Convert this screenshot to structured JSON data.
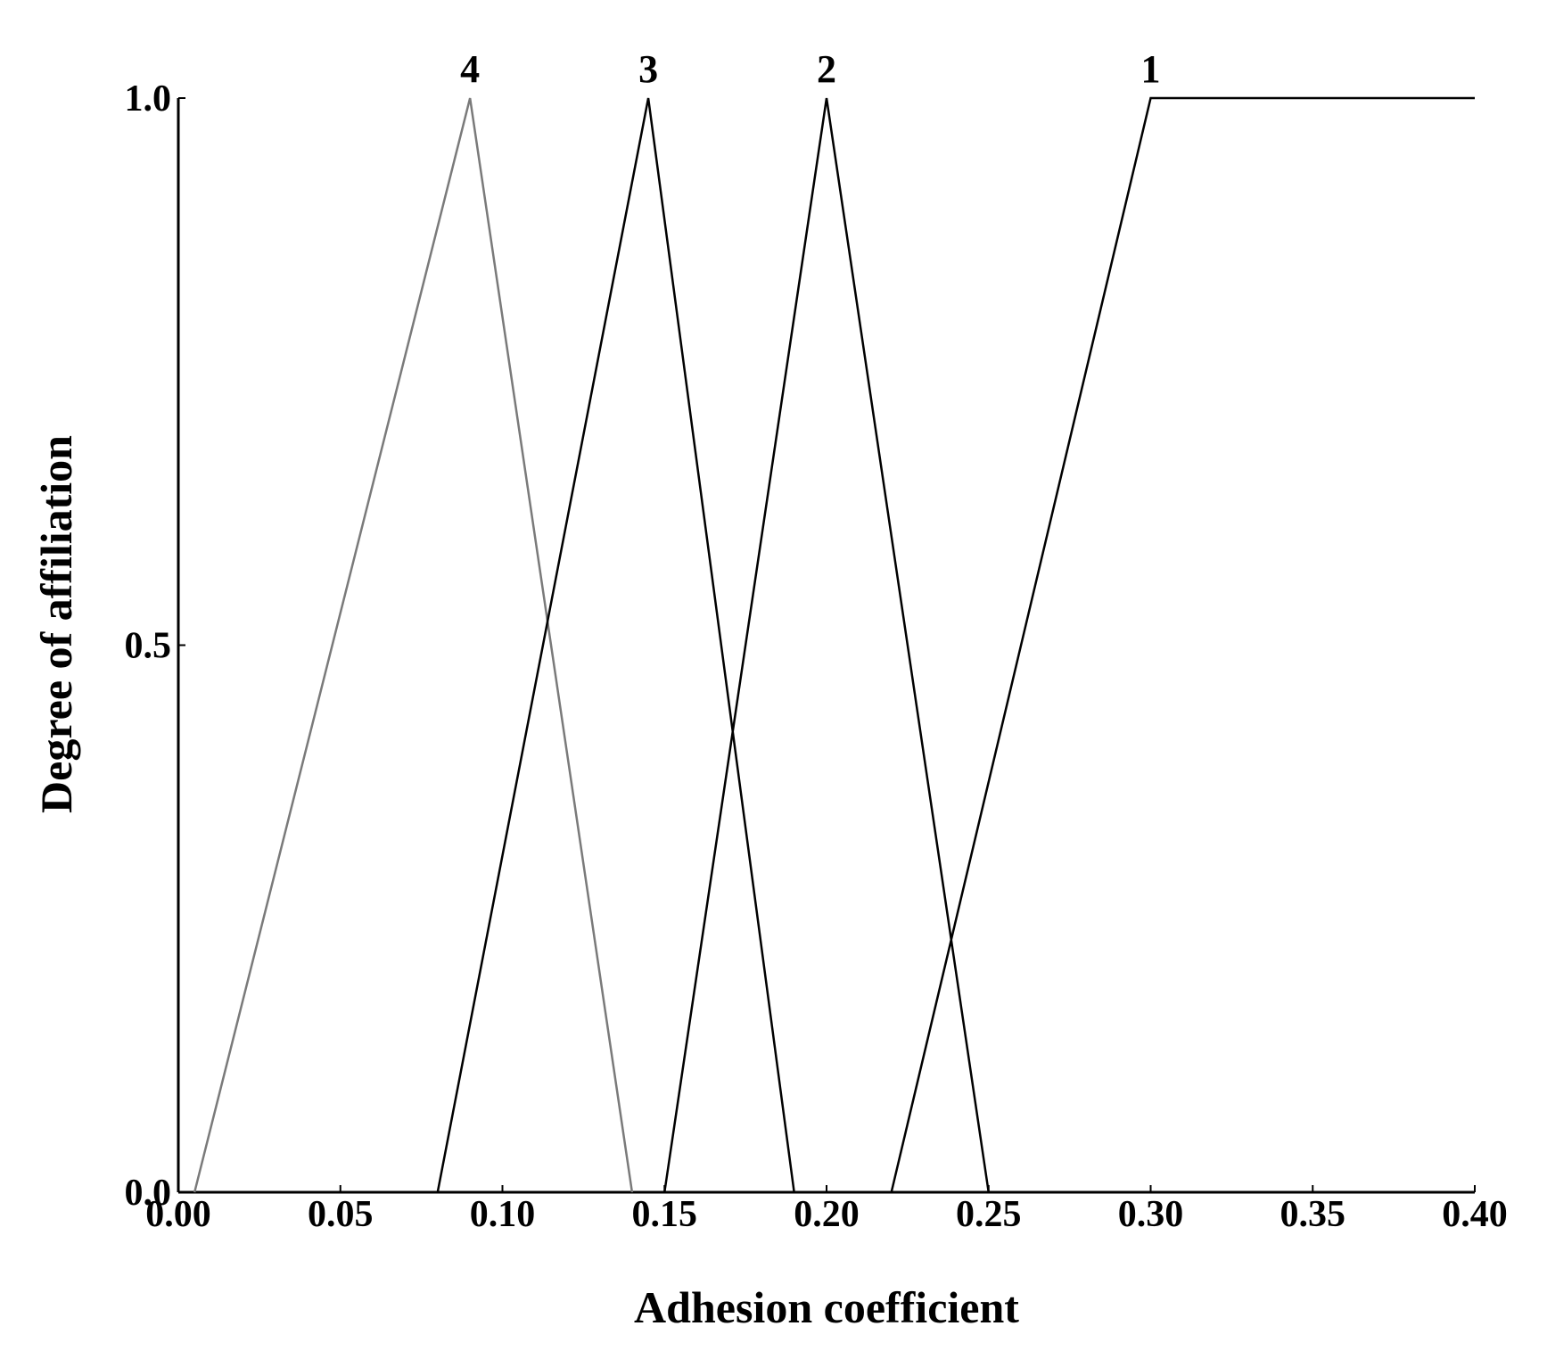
{
  "chart_data": {
    "type": "line",
    "x_label": "Adhesion coefficient",
    "y_label": "Degree of affiliation",
    "xlim": [
      0,
      0.4
    ],
    "xticks": [
      {
        "value": 0,
        "label": "0.00"
      },
      {
        "value": 0.05,
        "label": "0.05"
      },
      {
        "value": 0.1,
        "label": "0.10"
      },
      {
        "value": 0.15,
        "label": "0.15"
      },
      {
        "value": 0.2,
        "label": "0.20"
      },
      {
        "value": 0.25,
        "label": "0.25"
      },
      {
        "value": 0.3,
        "label": "0.30"
      },
      {
        "value": 0.35,
        "label": "0.35"
      },
      {
        "value": 0.4,
        "label": "0.40"
      }
    ],
    "ylim": [
      0,
      1
    ],
    "yticks": [
      {
        "value": 0,
        "label": "0.0"
      },
      {
        "value": 0.5,
        "label": "0.5"
      },
      {
        "value": 1,
        "label": "1.0"
      }
    ],
    "series": [
      {
        "name": "4",
        "color": "#7a7a7a",
        "x": [
          0.005,
          0.09,
          0.14
        ],
        "values": [
          0,
          1,
          0
        ]
      },
      {
        "name": "3",
        "color": "#000000",
        "x": [
          0.08,
          0.145,
          0.19
        ],
        "values": [
          0,
          1,
          0
        ]
      },
      {
        "name": "2",
        "color": "#000000",
        "x": [
          0.15,
          0.2,
          0.25
        ],
        "values": [
          0,
          1,
          0
        ]
      },
      {
        "name": "1",
        "color": "#000000",
        "x": [
          0.22,
          0.3,
          0.4
        ],
        "values": [
          0,
          1,
          1
        ]
      }
    ]
  }
}
